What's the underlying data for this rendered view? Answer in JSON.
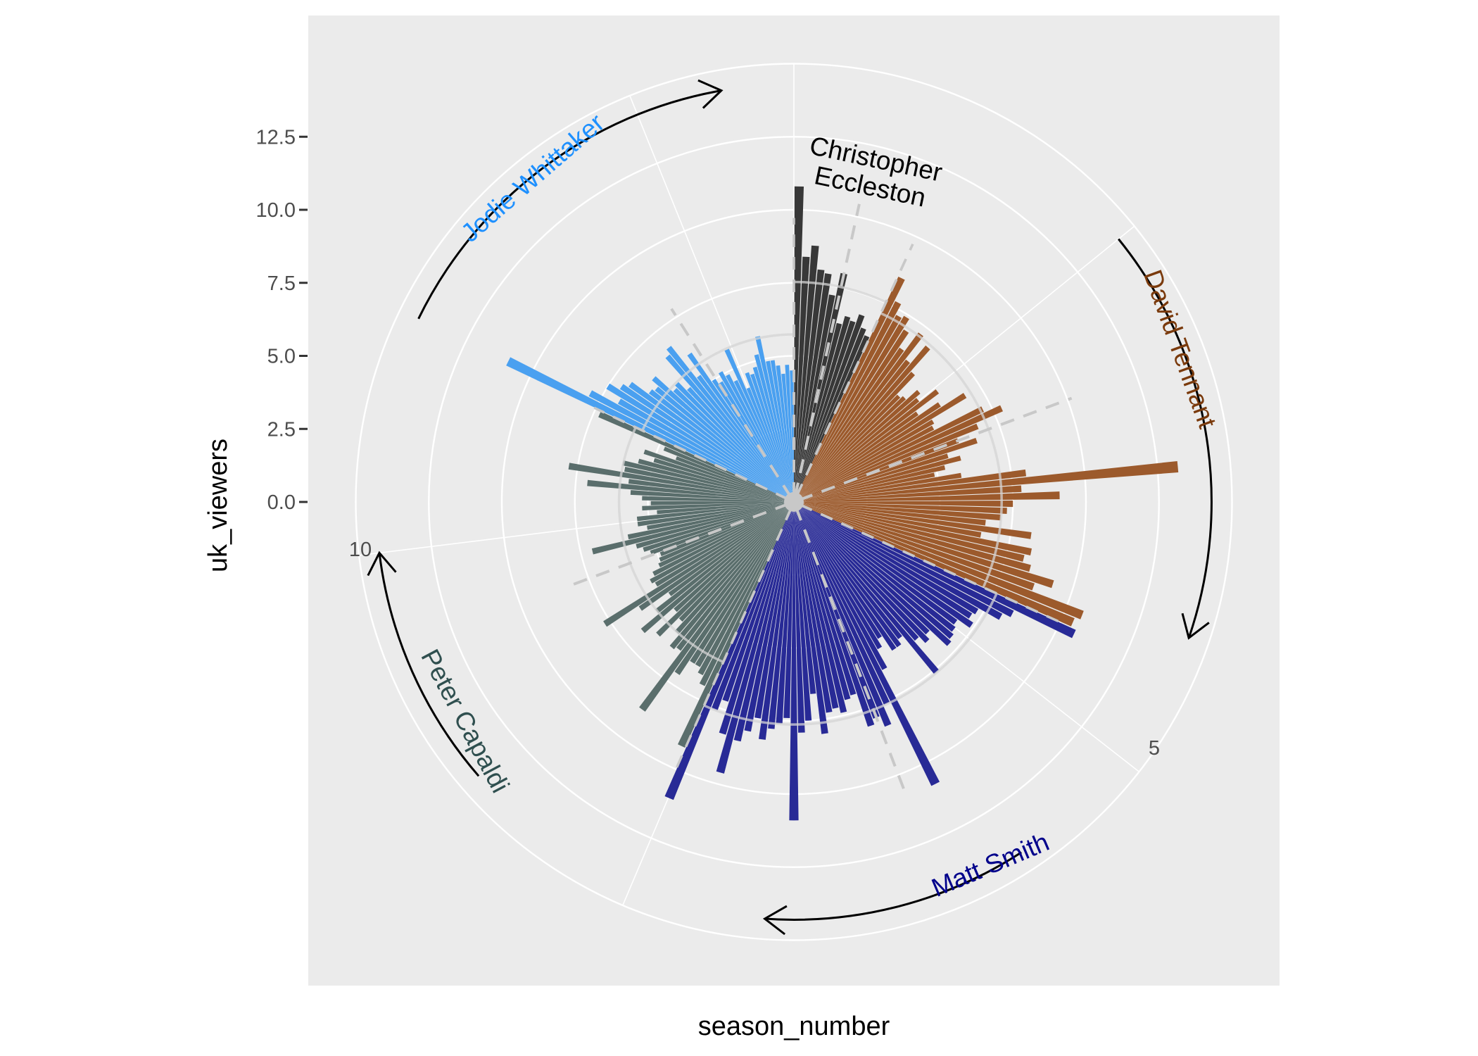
{
  "chart_data": {
    "type": "bar",
    "coord": "polar",
    "xlabel": "season_number",
    "ylabel": "uk_viewers",
    "yticks": [
      "0.0",
      "2.5",
      "5.0",
      "7.5",
      "10.0",
      "12.5"
    ],
    "ytick_values": [
      0,
      2.5,
      5,
      7.5,
      10,
      12.5
    ],
    "angle_ticks": [
      {
        "label": "5",
        "value": 5
      },
      {
        "label": "10",
        "value": 10
      }
    ],
    "ylim": [
      0,
      15
    ],
    "legend": "none",
    "colors": {
      "panel": "#ebebeb",
      "grid": "#ffffff",
      "mean_ring": "#d4d4d4",
      "median_line": "#c8c8c8"
    },
    "doctors": [
      {
        "name": "Christopher\nEccleston",
        "label_lines": [
          "Christopher",
          "Eccleston"
        ],
        "color": "#383838",
        "label_color": "#000000",
        "values": [
          10.8,
          8.4,
          8.8,
          8.0,
          7.9,
          7.2,
          8.0,
          6.3,
          6.6,
          6.5,
          6.8,
          6.4,
          6.2
        ]
      },
      {
        "name": "David Tennant",
        "color": "#9c5a2c",
        "label_color": "#7a3a0c",
        "values": [
          8.5,
          7.7,
          7.3,
          7.4,
          7.0,
          6.4,
          7.2,
          6.2,
          7.0,
          6.0,
          5.1,
          5.2,
          5.7,
          5.5,
          6.2,
          5.2,
          6.0,
          6.9,
          5.5,
          5.4,
          7.2,
          7.8,
          6.8,
          6.0,
          6.6,
          5.5,
          5.9,
          5.3,
          4.9,
          5.8,
          8.0,
          13.2,
          7.8,
          9.1,
          7.5,
          7.3,
          7.1,
          6.6,
          8.2,
          6.5,
          8.3,
          8.1,
          8.4,
          9.3,
          8.7,
          10.6,
          10.4
        ]
      },
      {
        "name": "Matt Smith",
        "color": "#282a96",
        "label_color": "#00008b",
        "values": [
          10.6,
          8.4,
          8.1,
          7.3,
          7.2,
          7.4,
          6.9,
          7.0,
          7.1,
          7.2,
          6.4,
          6.6,
          6.3,
          7.6,
          5.9,
          6.1,
          6.1,
          5.5,
          5.8,
          6.5,
          10.8,
          7.6,
          8.3,
          7.9,
          8.1,
          6.9,
          7.0,
          7.4,
          7.2,
          7.3,
          8.0,
          6.6,
          7.5,
          7.9,
          10.9,
          7.4,
          7.6,
          7.8,
          8.2,
          7.5,
          8.0,
          8.4,
          9.6,
          8.3,
          7.2,
          7.6,
          11.0
        ]
      },
      {
        "name": "Peter Capaldi",
        "color": "#5a6e6c",
        "label_color": "#2f4f4f",
        "values": [
          9.2,
          7.0,
          6.7,
          6.5,
          6.5,
          7.1,
          8.8,
          6.4,
          6.5,
          6.0,
          5.6,
          6.5,
          5.5,
          6.8,
          6.0,
          5.3,
          6.4,
          7.7,
          5.5,
          5.6,
          5.4,
          5.1,
          5.0,
          4.9,
          5.2,
          5.4,
          5.6,
          7.1,
          5.8,
          5.1,
          5.4,
          5.4,
          4.7,
          5.2,
          4.9,
          5.2,
          5.6,
          7.1,
          5.7,
          7.8,
          5.9,
          6.0,
          5.5,
          5.0,
          5.4,
          4.3,
          4.8,
          7.3
        ]
      },
      {
        "name": "Jodie Whittaker",
        "color": "#4aa0f0",
        "label_color": "#1e90ff",
        "values": [
          10.9,
          7.9,
          6.9,
          7.5,
          7.1,
          6.9,
          6.2,
          6.1,
          6.4,
          5.6,
          5.7,
          5.3,
          6.6,
          6.8,
          5.4,
          6.2,
          5.0,
          4.8,
          5.1,
          4.9,
          4.6,
          5.7,
          4.2,
          4.7,
          4.6,
          4.8,
          5.2,
          5.8,
          4.9,
          4.9,
          4.7,
          4.4,
          4.7,
          4.5
        ]
      }
    ]
  }
}
